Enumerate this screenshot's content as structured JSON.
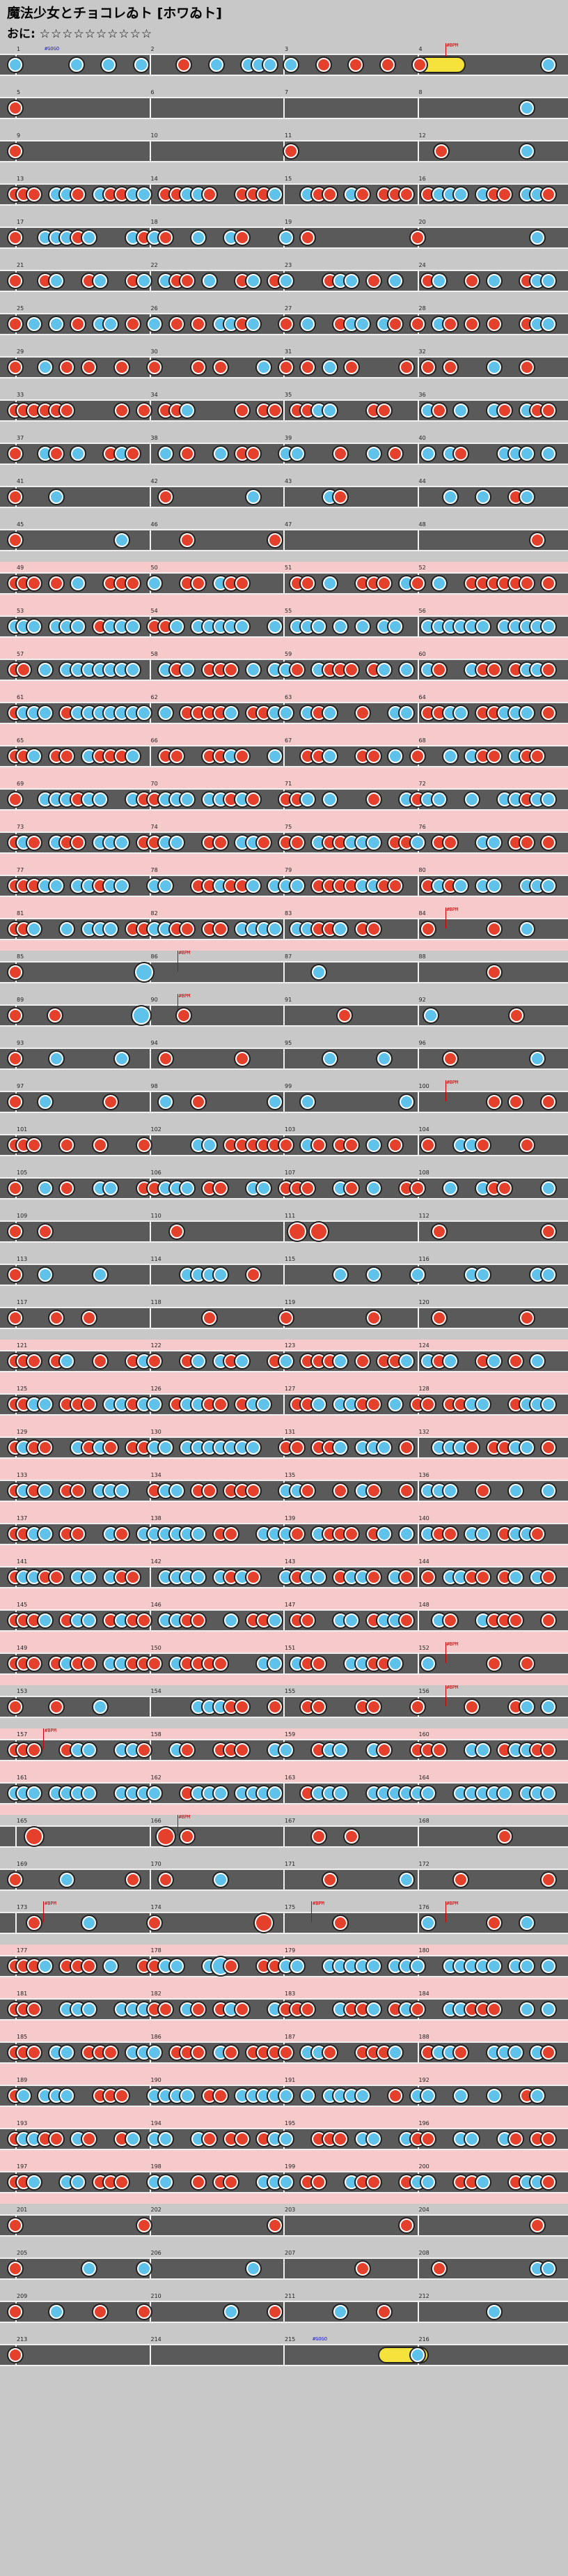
{
  "title": "魔法少女とチョコレゐト [ホワゐト]",
  "difficulty_label": "おに",
  "difficulty_stars": "☆☆☆☆☆☆☆☆☆☆",
  "colors": {
    "don": "#e4402b",
    "ka": "#5ec2ea",
    "roll": "#f5e23b",
    "lane": "#5a5a5a",
    "gogo": "#f6c9cb"
  },
  "rows": [
    {
      "measures": [
        "1",
        "2",
        "3",
        "4"
      ],
      "notes": "k.....k..k..k...d..k..kkk.k..d..d..d..d...........k",
      "big": [],
      "roll": [
        [
          0.735,
          0.82
        ]
      ],
      "gogo": false,
      "labels": [
        {
          "m": 0,
          "t": "#GOGO"
        },
        {
          "m": 3,
          "t": "#BPM"
        }
      ]
    },
    {
      "measures": [
        "5",
        "6",
        "7",
        "8"
      ],
      "notes": "d...............................................k..",
      "big": [],
      "roll": [],
      "gogo": false,
      "labels": []
    },
    {
      "measures": [
        "9",
        "10",
        "11",
        "12"
      ],
      "notes": "d.........................d.............d.......k..",
      "big": [],
      "roll": [],
      "gogo": false,
      "labels": []
    },
    {
      "measures": [
        "13",
        "14",
        "15",
        "16"
      ],
      "notes": "ddd.kkd.kddkk.ddkkd..dddk..kdd.kd.ddd.dkkk.kdd.kkd",
      "big": [],
      "roll": [],
      "gogo": false,
      "labels": []
    },
    {
      "measures": [
        "17",
        "18",
        "19",
        "20"
      ],
      "notes": "d..kkkdk...kdkd..k..kd...k.d.........d..........k.",
      "big": [],
      "roll": [],
      "gogo": false,
      "labels": []
    },
    {
      "measures": [
        "21",
        "22",
        "23",
        "24"
      ],
      "notes": "d..dk..dk..dk.kdd.k..dk.dk...dkk.d.k..dk..d.k..dkk",
      "big": [],
      "roll": [],
      "gogo": false,
      "labels": []
    },
    {
      "measures": [
        "25",
        "26",
        "27",
        "28"
      ],
      "notes": "d.k.k.d.kk.d.k.d.d.kkdk..d.k..dkk.kd.d.kd.d.d..dkk",
      "big": [],
      "roll": [],
      "gogo": false,
      "labels": []
    },
    {
      "measures": [
        "29",
        "30",
        "31",
        "32"
      ],
      "notes": "d..k.d.d..d..d...d.d...k.d.d.k.d....d.d.d...k..d..",
      "big": [],
      "roll": [],
      "gogo": false,
      "labels": []
    },
    {
      "measures": [
        "33",
        "34",
        "35",
        "36"
      ],
      "notes": "dddddd....d.d.ddk....d.dd.ddkk...dd...kd.k..kd.kdd",
      "big": [],
      "roll": [],
      "gogo": false,
      "labels": []
    },
    {
      "measures": [
        "37",
        "38",
        "39",
        "40"
      ],
      "notes": "d..kd.k..dkd..k.d..k.dd..kk...d..k.d..k.kd...kkk.k",
      "big": [],
      "roll": [],
      "gogo": false,
      "labels": []
    },
    {
      "measures": [
        "41",
        "42",
        "43",
        "44"
      ],
      "notes": "d...k.........d.......k......kd.........k..k..dk..",
      "big": [],
      "roll": [],
      "gogo": false,
      "labels": []
    },
    {
      "measures": [
        "45",
        "46",
        "47",
        "48"
      ],
      "notes": "d.........k.....d.......d.......................d.",
      "big": [],
      "roll": [],
      "gogo": false,
      "labels": []
    },
    {
      "measures": [
        "49",
        "50",
        "51",
        "52"
      ],
      "notes": "ddd.d.k..ddd.k..dd.kdd....dd.k..ddd.kd.k..dddddd.d",
      "big": [],
      "roll": [],
      "gogo": true,
      "labels": []
    },
    {
      "measures": [
        "53",
        "54",
        "55",
        "56"
      ],
      "notes": "kkk.kkk.dkkk.ddk.kkkkk..k.kkk.k.k.kk..kkkkkk.kkkkk",
      "big": [],
      "roll": [],
      "gogo": true,
      "labels": []
    },
    {
      "measures": [
        "57",
        "58",
        "59",
        "60"
      ],
      "notes": "dd.k.kkkkkkk..kdk.ddd.k.kkd.kddd.dk.k.kd..kdd.dkkd",
      "big": [],
      "roll": [],
      "gogo": true,
      "labels": []
    },
    {
      "measures": [
        "61",
        "62",
        "63",
        "64"
      ],
      "notes": "dkkk.dkkkkkkk.k.ddddk.ddkk.kdk..d..kk.ddkk.ddkkk.d",
      "big": [],
      "roll": [],
      "gogo": true,
      "labels": []
    },
    {
      "measures": [
        "65",
        "66",
        "67",
        "68"
      ],
      "notes": "ddk.dd.kdddk..dd..ddkd..k..ddk..dd.k.d..k.kdd.kdd.",
      "big": [],
      "roll": [],
      "gogo": true,
      "labels": []
    },
    {
      "measures": [
        "69",
        "70",
        "71",
        "72"
      ],
      "notes": "d..kkkdkk..kddkkk.kkdkd..ddk.k...d..kdkk..k..kkdkk",
      "big": [],
      "roll": [],
      "gogo": true,
      "labels": []
    },
    {
      "measures": [
        "73",
        "74",
        "75",
        "76"
      ],
      "notes": "dkd.kdd.kkk.ddkk..dd.kkd.dd.kddkkk.ddk.dd..kk.dd.d",
      "big": [],
      "roll": [],
      "gogo": true,
      "labels": []
    },
    {
      "measures": [
        "77",
        "78",
        "79",
        "80"
      ],
      "notes": "dddkk.kkdkk..kk..ddkddk.kkk.ddddkkdd..dkdk.kk..kkk",
      "big": [],
      "roll": [],
      "gogo": true,
      "labels": []
    },
    {
      "measures": [
        "81",
        "82",
        "83",
        "84"
      ],
      "notes": "ddk..k.kkk.ddkkdd.dd.kkkk.kkddk.dd....d.....d..k..",
      "big": [],
      "roll": [],
      "gogo": true,
      "labels": [
        {
          "m": 3,
          "t": "#BPM"
        }
      ]
    },
    {
      "measures": [
        "85",
        "86",
        "87",
        "88"
      ],
      "notes": "d...........k...............k...............d.....",
      "big": [
        12
      ],
      "roll": [],
      "gogo": false,
      "labels": [
        {
          "m": 1,
          "t": "#BPM"
        }
      ]
    },
    {
      "measures": [
        "89",
        "90",
        "91",
        "92"
      ],
      "notes": "d...d.......k...d..............d.......k.......d...",
      "big": [
        12
      ],
      "roll": [],
      "gogo": false,
      "labels": [
        {
          "m": 1,
          "t": "#BPM"
        }
      ]
    },
    {
      "measures": [
        "93",
        "94",
        "95",
        "96"
      ],
      "notes": "d...k.....k...d......d.......k....k.....d.......k.",
      "big": [],
      "roll": [],
      "gogo": false,
      "labels": []
    },
    {
      "measures": [
        "97",
        "98",
        "99",
        "100"
      ],
      "notes": "d..k.....d....k..d......k..k........k.......d.d..d",
      "big": [
        32,
        37
      ],
      "roll": [],
      "gogo": false,
      "labels": [
        {
          "m": 3,
          "t": "#BPM"
        }
      ]
    },
    {
      "measures": [
        "101",
        "102",
        "103",
        "104"
      ],
      "notes": "ddd..d..d...d....kk.dddddd.kd.dd.k.d..d..kkd...d..",
      "big": [],
      "roll": [],
      "gogo": false,
      "labels": []
    },
    {
      "measures": [
        "105",
        "106",
        "107",
        "108"
      ],
      "notes": "d..k.d..kk..ddkkk.dd..kk.ddd..kd.k..dd..k..kdd...k",
      "big": [],
      "roll": [],
      "gogo": false,
      "labels": []
    },
    {
      "measures": [
        "109",
        "110",
        "111",
        "112"
      ],
      "notes": "d..d...........d..........d.d..........d.........d",
      "big": [
        2,
        4,
        12,
        26,
        28
      ],
      "roll": [],
      "gogo": false,
      "labels": []
    },
    {
      "measures": [
        "113",
        "114",
        "115",
        "116"
      ],
      "notes": "d..k....k.......kkkk..d.......k..k...k....kk....kk",
      "big": [],
      "roll": [],
      "gogo": false,
      "labels": []
    },
    {
      "measures": [
        "117",
        "118",
        "119",
        "120"
      ],
      "notes": "d...d..d..........d......d.......d.....d.......d..",
      "big": [],
      "roll": [],
      "gogo": false,
      "labels": []
    },
    {
      "measures": [
        "121",
        "122",
        "123",
        "124"
      ],
      "notes": "ddd.dk..d..dkd..dk.kdk..dk.dddk.d.ddk.kdk..dk.d.k.",
      "big": [],
      "roll": [],
      "gogo": true,
      "labels": []
    },
    {
      "measures": [
        "125",
        "126",
        "127",
        "128"
      ],
      "notes": "ddkk.ddd.kkdkk.dkkdd.dkk..ddk.kkdd.k.dd.ddkk..dkkk",
      "big": [],
      "roll": [],
      "gogo": true,
      "labels": []
    },
    {
      "measures": [
        "129",
        "130",
        "131",
        "132"
      ],
      "notes": "dkdd..kdkd.ddkk.kkkkkkk..dd.ddk.kkk.d..kkkd.ddkk.d",
      "big": [],
      "roll": [],
      "gogo": true,
      "labels": []
    },
    {
      "measures": [
        "133",
        "134",
        "135",
        "136"
      ],
      "notes": "dkdk.dd.kkk..dkk.dd.ddd..kkd..d.kd..d.kkk..d..k..k",
      "big": [],
      "roll": [],
      "gogo": true,
      "labels": []
    },
    {
      "measures": [
        "137",
        "138",
        "139",
        "140"
      ],
      "notes": "ddkk.dd..kd.kkkkkk.dd..kkkd.kddd.dk.k.kdd.kk.dkkd.",
      "big": [],
      "roll": [],
      "gogo": true,
      "labels": []
    },
    {
      "measures": [
        "141",
        "142",
        "143",
        "144"
      ],
      "notes": "dkkdd.kk.kdd..kkkk.kdkd..kdkk.dkkd.kd.d.kkdd.dk.kd",
      "big": [],
      "roll": [],
      "gogo": true,
      "labels": []
    },
    {
      "measures": [
        "145",
        "146",
        "147",
        "148"
      ],
      "notes": "dddk.dkk.dkdd.kkdd..k.ddk.dd..kk.dkkd..kd..kddd..d",
      "big": [],
      "roll": [],
      "gogo": true,
      "labels": []
    },
    {
      "measures": [
        "149",
        "150",
        "151",
        "152"
      ],
      "notes": "ddd.dkdd.kkddd.kdddd...kk.kdd..kkddk..k.....d..d..",
      "big": [],
      "roll": [],
      "gogo": true,
      "labels": [
        {
          "m": 3,
          "t": "#BPM"
        }
      ]
    },
    {
      "measures": [
        "153",
        "154",
        "155",
        "156"
      ],
      "notes": "d...d...k........kkkdd..d..dd...dd...d....d...dk.k",
      "big": [],
      "roll": [],
      "gogo": false,
      "labels": [
        {
          "m": 3,
          "t": "#BPM"
        }
      ]
    },
    {
      "measures": [
        "157",
        "158",
        "159",
        "160"
      ],
      "notes": "ddd..dkk..kkd..kd..ddd..kk..dkk..kd..ddd..kk.dkkdd",
      "big": [],
      "roll": [],
      "gogo": true,
      "labels": [
        {
          "m": 0,
          "t": "#BPM"
        }
      ]
    },
    {
      "measures": [
        "161",
        "162",
        "163",
        "164"
      ],
      "notes": "kkk.kkkk..kkkk..dkkk.kkkk..dkkk..kkkkkk..kkkkk.kkk",
      "big": [],
      "roll": [],
      "gogo": true,
      "labels": []
    },
    {
      "measures": [
        "165",
        "166",
        "167",
        "168"
      ],
      "notes": "..d...........d.d...........d..d.............d....",
      "big": [
        2,
        14,
        29
      ],
      "roll": [],
      "gogo": false,
      "labels": [
        {
          "m": 1,
          "t": "#BPM"
        }
      ]
    },
    {
      "measures": [
        "169",
        "170",
        "171",
        "172"
      ],
      "notes": "d....k.....d..d....k.........d......k....d.......d",
      "big": [],
      "roll": [],
      "gogo": false,
      "labels": []
    },
    {
      "measures": [
        "173",
        "174",
        "175",
        "176"
      ],
      "notes": "..d....k.....d.........d......d.......k.....d..k..",
      "big": [
        23,
        29
      ],
      "roll": [],
      "gogo": false,
      "labels": [
        {
          "m": 0,
          "t": "#BPM"
        },
        {
          "m": 2,
          "t": "#BPM"
        },
        {
          "m": 3,
          "t": "#BPM"
        }
      ]
    },
    {
      "measures": [
        "177",
        "178",
        "179",
        "180"
      ],
      "notes": "dddk.ddd.k..ddkk..kkd..ddkk..kkkkk.kkk..kkkkk.kk.k",
      "big": [
        19,
        28,
        39
      ],
      "roll": [],
      "gogo": true,
      "labels": []
    },
    {
      "measures": [
        "181",
        "182",
        "183",
        "184"
      ],
      "notes": "ddd..kkk..kkkdd.kd.dkd..kddd..kddk.dkd..kkddd..k.k",
      "big": [],
      "roll": [],
      "gogo": true,
      "labels": []
    },
    {
      "measures": [
        "185",
        "186",
        "187",
        "188"
      ],
      "notes": "ddd.kk.ddd.kkk.ddd.kd.dddd.kkd..dddk..dkkd..kkk.kd",
      "big": [],
      "roll": [],
      "gogo": true,
      "labels": []
    },
    {
      "measures": [
        "189",
        "190",
        "191",
        "192"
      ],
      "notes": "dk.kkk..ddd..kkkk.dd.kkkkk.k.kkkk..d.kk..k..k..dk.",
      "big": [],
      "roll": [],
      "gogo": true,
      "labels": []
    },
    {
      "measures": [
        "193",
        "194",
        "195",
        "196"
      ],
      "notes": "dkkdd.kd..dk.kk..kd.dd.dkk..ddd.kk..kdd..kk..kd.dd",
      "big": [],
      "roll": [],
      "gogo": true,
      "labels": []
    },
    {
      "measures": [
        "197",
        "198",
        "199",
        "200"
      ],
      "notes": "ddk..kk.ddd..kk..d.dd..kkk.dd..kdd..dkk..ddk..dkkd",
      "big": [],
      "roll": [],
      "gogo": true,
      "labels": []
    },
    {
      "measures": [
        "201",
        "202",
        "203",
        "204"
      ],
      "notes": "d...........d...........d...........d...........d.",
      "big": [],
      "roll": [],
      "gogo": false,
      "labels": []
    },
    {
      "measures": [
        "205",
        "206",
        "207",
        "208"
      ],
      "notes": "d......k....k.........k.........d......d........kk",
      "big": [],
      "roll": [],
      "gogo": false,
      "labels": []
    },
    {
      "measures": [
        "209",
        "210",
        "211",
        "212"
      ],
      "notes": "d...k...d...d.......k...d.....k...d.........k.....",
      "big": [],
      "roll": [],
      "gogo": false,
      "labels": []
    },
    {
      "measures": [
        "213",
        "214",
        "215",
        "216"
      ],
      "notes": "d....................................k............",
      "big": [],
      "roll": [
        [
          0.665,
          0.755
        ]
      ],
      "gogo": false,
      "labels": [
        {
          "m": 2,
          "t": "#GOGO"
        }
      ]
    }
  ]
}
